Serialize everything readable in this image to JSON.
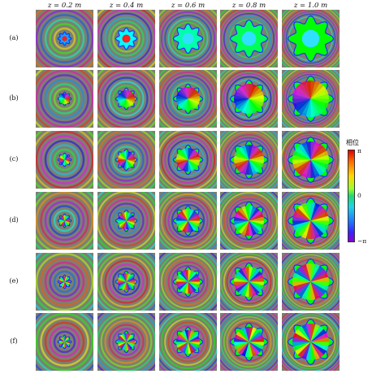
{
  "columns": [
    "z = 0.2 m",
    "z = 0.4 m",
    "z = 0.6 m",
    "z = 0.8 m",
    "z = 1.0 m"
  ],
  "rows": [
    {
      "label": "(a)",
      "vortex": 0
    },
    {
      "label": "(b)",
      "vortex": 1
    },
    {
      "label": "(c)",
      "vortex": 2
    },
    {
      "label": "(d)",
      "vortex": 3
    },
    {
      "label": "(e)",
      "vortex": 4
    },
    {
      "label": "(f)",
      "vortex": 5
    }
  ],
  "colorbar": {
    "title": "相位",
    "ticks": [
      "π",
      "0",
      "−π"
    ],
    "colors": [
      "#e00000",
      "#ffd800",
      "#1fd870",
      "#1f78ff",
      "#8a00d0"
    ]
  },
  "panel_background": "#7d7f71"
}
